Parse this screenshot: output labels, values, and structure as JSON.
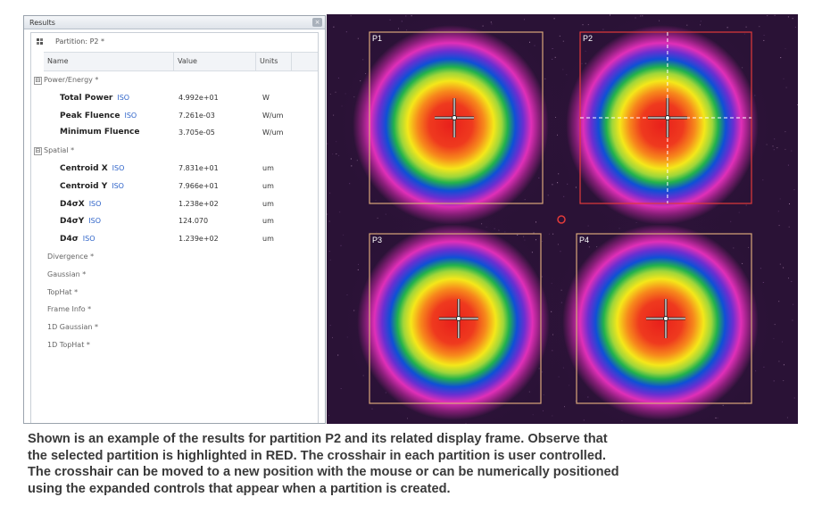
{
  "results_panel": {
    "title": "Results",
    "close_glyph": "×",
    "partition_label": "Partition: P2 *",
    "columns": {
      "name": "Name",
      "value": "Value",
      "units": "Units"
    },
    "iso_badge": "ISO",
    "rows": [
      {
        "kind": "group",
        "expander": "⊟",
        "label": "Power/Energy *"
      },
      {
        "kind": "metric",
        "name": "Total Power",
        "iso": true,
        "value": "4.992e+01",
        "units": "W"
      },
      {
        "kind": "metric",
        "name": "Peak Fluence",
        "iso": true,
        "value": "7.261e-03",
        "units": "W/um"
      },
      {
        "kind": "metric",
        "name": "Minimum Fluence",
        "iso": false,
        "value": "3.705e-05",
        "units": "W/um"
      },
      {
        "kind": "group",
        "expander": "⊟",
        "label": "Spatial *"
      },
      {
        "kind": "metric",
        "name": "Centroid X",
        "iso": true,
        "value": "7.831e+01",
        "units": "um"
      },
      {
        "kind": "metric",
        "name": "Centroid Y",
        "iso": true,
        "value": "7.966e+01",
        "units": "um"
      },
      {
        "kind": "metric",
        "name": "D4σX",
        "iso": true,
        "value": "1.238e+02",
        "units": "um"
      },
      {
        "kind": "metric",
        "name": "D4σY",
        "iso": true,
        "value": "124.070",
        "units": "um"
      },
      {
        "kind": "metric",
        "name": "D4σ",
        "iso": true,
        "value": "1.239e+02",
        "units": "um"
      },
      {
        "kind": "collapsed",
        "label": "Divergence *"
      },
      {
        "kind": "collapsed",
        "label": "Gaussian *"
      },
      {
        "kind": "collapsed",
        "label": "TopHat *"
      },
      {
        "kind": "collapsed",
        "label": "Frame Info *"
      },
      {
        "kind": "collapsed",
        "label": "1D Gaussian *"
      },
      {
        "kind": "collapsed",
        "label": "1D TopHat *"
      }
    ]
  },
  "beam_view": {
    "background": "#2a1236",
    "selected_partition": "P2",
    "selected_color": "#e23a3a",
    "unselected_color": "#d9a77a",
    "partitions": [
      {
        "label": "P1",
        "selected": false,
        "crosshair": [
          0.49,
          0.5
        ]
      },
      {
        "label": "P2",
        "selected": true,
        "crosshair": [
          0.51,
          0.5
        ]
      },
      {
        "label": "P3",
        "selected": false,
        "crosshair": [
          0.52,
          0.5
        ]
      },
      {
        "label": "P4",
        "selected": false,
        "crosshair": [
          0.51,
          0.5
        ]
      }
    ]
  },
  "caption": {
    "lines": [
      "Shown is an example of the results for partition P2 and its related display frame. Observe that",
      "the selected partition is highlighted in RED. The crosshair in each partition is user controlled.",
      "The crosshair can be moved to a new position with the mouse or can be numerically positioned",
      "using the expanded controls that appear when a partition is created."
    ]
  }
}
